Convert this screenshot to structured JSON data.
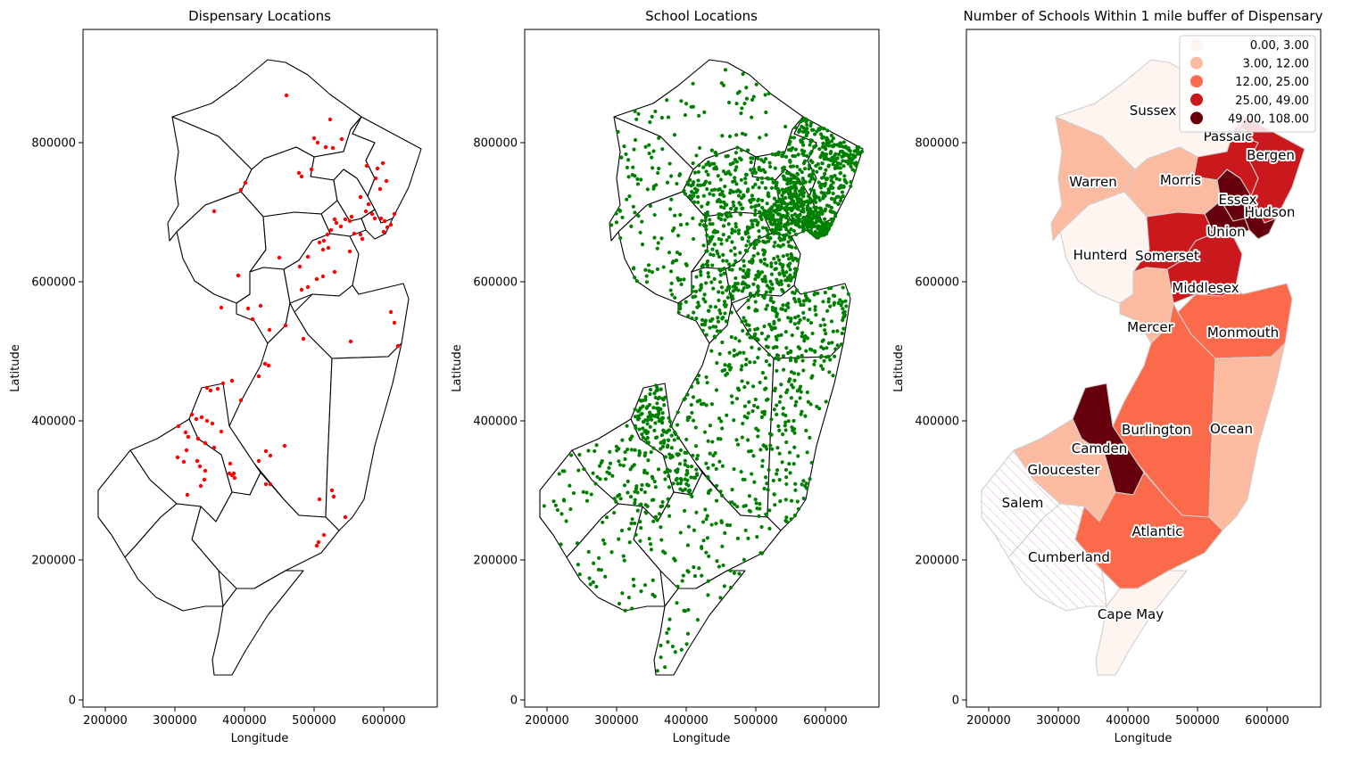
{
  "panels": {
    "dispensary": {
      "title": "Dispensary Locations",
      "xlabel": "Longitude",
      "ylabel": "Latitude"
    },
    "schools": {
      "title": "School Locations",
      "xlabel": "Longitude",
      "ylabel": "Latitude"
    },
    "choropleth": {
      "title": "Number of Schools Within 1 mile buffer of Dispensary",
      "xlabel": "Longitude",
      "ylabel": "Latitude"
    }
  },
  "axes": {
    "x_ticks": [
      "200000",
      "300000",
      "400000",
      "500000",
      "600000"
    ],
    "y_ticks": [
      "0",
      "200000",
      "400000",
      "600000",
      "800000"
    ]
  },
  "colors": {
    "dispensary_points": "#ff0000",
    "school_points": "#008000",
    "missing_hatch": "#d9b3b3",
    "class_colors": [
      "#fff5f0",
      "#fcbba1",
      "#fb6a4a",
      "#cb181d",
      "#67000d"
    ]
  },
  "legend": [
    {
      "label": "0.00,   3.00",
      "color": "#fff5f0"
    },
    {
      "label": "3.00,  12.00",
      "color": "#fcbba1"
    },
    {
      "label": "12.00,  25.00",
      "color": "#fb6a4a"
    },
    {
      "label": "25.00,  49.00",
      "color": "#cb181d"
    },
    {
      "label": "49.00, 108.00",
      "color": "#67000d"
    }
  ],
  "county_labels": {
    "sussex": "Sussex",
    "passaic": "Passaic",
    "bergen": "Bergen",
    "warren": "Warren",
    "morris": "Morris",
    "essex": "Essex",
    "hudson": "Hudson",
    "union": "Union",
    "hunterdon": "Hunterd",
    "somerset": "Somerset",
    "middlesex": "Middlesex",
    "mercer": "Mercer",
    "monmouth": "Monmouth",
    "burlington": "Burlington",
    "ocean": "Ocean",
    "camden": "Camden",
    "gloucester": "Gloucester",
    "salem": "Salem",
    "atlantic": "Atlantic",
    "cumberland": "Cumberland",
    "cape_may": "Cape May"
  },
  "map_data": {
    "type": "choropleth",
    "variable": "Number of Schools Within 1 mile buffer of Dispensary",
    "counties": [
      {
        "name": "Sussex",
        "class": 0
      },
      {
        "name": "Passaic",
        "class": 3
      },
      {
        "name": "Bergen",
        "class": 3
      },
      {
        "name": "Warren",
        "class": 1
      },
      {
        "name": "Morris",
        "class": 1
      },
      {
        "name": "Essex",
        "class": 4
      },
      {
        "name": "Hudson",
        "class": 4
      },
      {
        "name": "Union",
        "class": 4
      },
      {
        "name": "Hunterdon",
        "class": 0
      },
      {
        "name": "Somerset",
        "class": 3
      },
      {
        "name": "Middlesex",
        "class": 3
      },
      {
        "name": "Mercer",
        "class": 1
      },
      {
        "name": "Monmouth",
        "class": 2
      },
      {
        "name": "Burlington",
        "class": 2
      },
      {
        "name": "Ocean",
        "class": 1
      },
      {
        "name": "Camden",
        "class": 4
      },
      {
        "name": "Gloucester",
        "class": 1
      },
      {
        "name": "Salem",
        "class": null
      },
      {
        "name": "Atlantic",
        "class": 2
      },
      {
        "name": "Cumberland",
        "class": null
      },
      {
        "name": "Cape May",
        "class": 0
      }
    ]
  }
}
